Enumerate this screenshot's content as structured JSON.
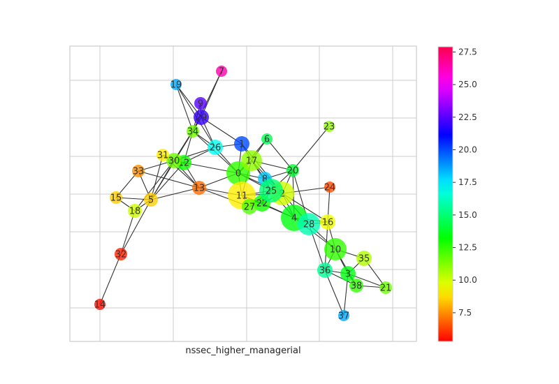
{
  "xlabel": "nssec_higher_managerial",
  "colorbar": {
    "ticks": [
      "7.5",
      "10.0",
      "12.5",
      "15.0",
      "17.5",
      "20.0",
      "22.5",
      "25.0",
      "27.5"
    ],
    "tick_values": [
      7.5,
      10.0,
      12.5,
      15.0,
      17.5,
      20.0,
      22.5,
      25.0,
      27.5
    ],
    "min": 5.3,
    "max": 27.9,
    "colormap": "hsv"
  },
  "nodes": [
    {
      "id": "0",
      "value": 12.5
    },
    {
      "id": "1",
      "value": 20.0
    },
    {
      "id": "2",
      "value": 10.0
    },
    {
      "id": "3",
      "value": 13.5
    },
    {
      "id": "4",
      "value": 13.5
    },
    {
      "id": "5",
      "value": 8.5
    },
    {
      "id": "6",
      "value": 14.5
    },
    {
      "id": "7",
      "value": 26.5
    },
    {
      "id": "8",
      "value": 18.0
    },
    {
      "id": "9",
      "value": 22.5
    },
    {
      "id": "10",
      "value": 12.5
    },
    {
      "id": "11",
      "value": 9.0
    },
    {
      "id": "12",
      "value": 13.0
    },
    {
      "id": "13",
      "value": 7.0
    },
    {
      "id": "14",
      "value": 5.5
    },
    {
      "id": "15",
      "value": 8.5
    },
    {
      "id": "16",
      "value": 9.5
    },
    {
      "id": "17",
      "value": 11.0
    },
    {
      "id": "18",
      "value": 10.0
    },
    {
      "id": "19",
      "value": 18.5
    },
    {
      "id": "20",
      "value": 14.0
    },
    {
      "id": "21",
      "value": 11.5
    },
    {
      "id": "22",
      "value": 13.0
    },
    {
      "id": "23",
      "value": 11.0
    },
    {
      "id": "24",
      "value": 6.5
    },
    {
      "id": "25",
      "value": 15.0
    },
    {
      "id": "26",
      "value": 17.0
    },
    {
      "id": "27",
      "value": 12.0
    },
    {
      "id": "28",
      "value": 16.0
    },
    {
      "id": "29",
      "value": 22.0
    },
    {
      "id": "30",
      "value": 11.5
    },
    {
      "id": "31",
      "value": 9.0
    },
    {
      "id": "32",
      "value": 5.8
    },
    {
      "id": "33",
      "value": 7.5
    },
    {
      "id": "34",
      "value": 11.5
    },
    {
      "id": "35",
      "value": 10.5
    },
    {
      "id": "36",
      "value": 15.5
    },
    {
      "id": "37",
      "value": 18.5
    },
    {
      "id": "38",
      "value": 12.5
    }
  ],
  "edges": [
    [
      "7",
      "29"
    ],
    [
      "7",
      "34"
    ],
    [
      "19",
      "29"
    ],
    [
      "19",
      "26"
    ],
    [
      "19",
      "34"
    ],
    [
      "9",
      "29"
    ],
    [
      "9",
      "34"
    ],
    [
      "29",
      "34"
    ],
    [
      "29",
      "1"
    ],
    [
      "29",
      "26"
    ],
    [
      "29",
      "30"
    ],
    [
      "34",
      "30"
    ],
    [
      "34",
      "26"
    ],
    [
      "34",
      "12"
    ],
    [
      "34",
      "5"
    ],
    [
      "34",
      "0"
    ],
    [
      "26",
      "1"
    ],
    [
      "26",
      "0"
    ],
    [
      "26",
      "30"
    ],
    [
      "26",
      "12"
    ],
    [
      "1",
      "0"
    ],
    [
      "1",
      "17"
    ],
    [
      "1",
      "2"
    ],
    [
      "6",
      "17"
    ],
    [
      "6",
      "20"
    ],
    [
      "6",
      "0"
    ],
    [
      "23",
      "20"
    ],
    [
      "31",
      "30"
    ],
    [
      "31",
      "12"
    ],
    [
      "31",
      "13"
    ],
    [
      "31",
      "5"
    ],
    [
      "33",
      "5"
    ],
    [
      "33",
      "15"
    ],
    [
      "33",
      "30"
    ],
    [
      "33",
      "13"
    ],
    [
      "30",
      "12"
    ],
    [
      "30",
      "13"
    ],
    [
      "30",
      "5"
    ],
    [
      "30",
      "18"
    ],
    [
      "12",
      "0"
    ],
    [
      "12",
      "13"
    ],
    [
      "12",
      "5"
    ],
    [
      "15",
      "18"
    ],
    [
      "15",
      "5"
    ],
    [
      "18",
      "5"
    ],
    [
      "5",
      "13"
    ],
    [
      "5",
      "32"
    ],
    [
      "32",
      "14"
    ],
    [
      "32",
      "18"
    ],
    [
      "13",
      "11"
    ],
    [
      "13",
      "0"
    ],
    [
      "13",
      "27"
    ],
    [
      "0",
      "17"
    ],
    [
      "0",
      "11"
    ],
    [
      "0",
      "8"
    ],
    [
      "0",
      "25"
    ],
    [
      "0",
      "2"
    ],
    [
      "17",
      "8"
    ],
    [
      "17",
      "11"
    ],
    [
      "17",
      "25"
    ],
    [
      "17",
      "20"
    ],
    [
      "17",
      "2"
    ],
    [
      "11",
      "27"
    ],
    [
      "11",
      "22"
    ],
    [
      "11",
      "25"
    ],
    [
      "11",
      "2"
    ],
    [
      "11",
      "4"
    ],
    [
      "8",
      "25"
    ],
    [
      "8",
      "22"
    ],
    [
      "8",
      "2"
    ],
    [
      "8",
      "20"
    ],
    [
      "25",
      "20"
    ],
    [
      "25",
      "2"
    ],
    [
      "25",
      "22"
    ],
    [
      "25",
      "4"
    ],
    [
      "27",
      "22"
    ],
    [
      "27",
      "25"
    ],
    [
      "22",
      "4"
    ],
    [
      "22",
      "2"
    ],
    [
      "20",
      "2"
    ],
    [
      "20",
      "4"
    ],
    [
      "20",
      "28"
    ],
    [
      "2",
      "24"
    ],
    [
      "2",
      "4"
    ],
    [
      "2",
      "28"
    ],
    [
      "2",
      "16"
    ],
    [
      "24",
      "16"
    ],
    [
      "4",
      "28"
    ],
    [
      "4",
      "16"
    ],
    [
      "4",
      "10"
    ],
    [
      "28",
      "16"
    ],
    [
      "28",
      "10"
    ],
    [
      "28",
      "36"
    ],
    [
      "16",
      "10"
    ],
    [
      "16",
      "36"
    ],
    [
      "10",
      "35"
    ],
    [
      "10",
      "3"
    ],
    [
      "10",
      "36"
    ],
    [
      "10",
      "38"
    ],
    [
      "35",
      "3"
    ],
    [
      "35",
      "21"
    ],
    [
      "3",
      "36"
    ],
    [
      "3",
      "38"
    ],
    [
      "3",
      "37"
    ],
    [
      "3",
      "21"
    ],
    [
      "36",
      "37"
    ],
    [
      "38",
      "21"
    ],
    [
      "36",
      "38"
    ]
  ]
}
